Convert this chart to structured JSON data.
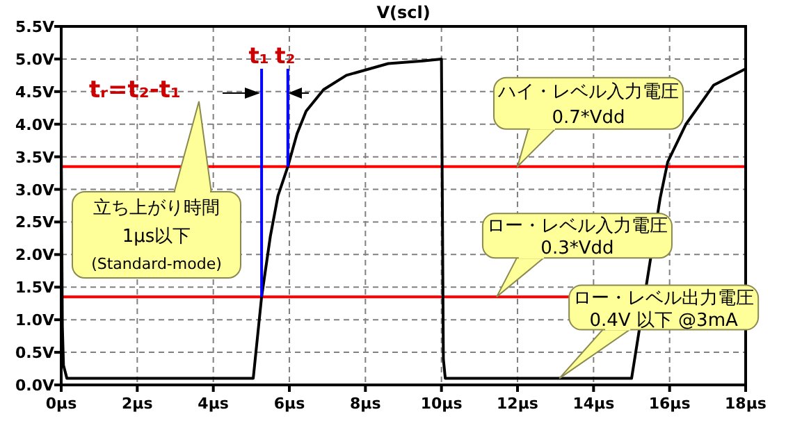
{
  "chart_data": {
    "type": "line",
    "title": "V(scl)",
    "xlim": [
      0,
      18
    ],
    "xticks": [
      {
        "value": 0,
        "label": "0μs"
      },
      {
        "value": 2,
        "label": "2μs"
      },
      {
        "value": 4,
        "label": "4μs"
      },
      {
        "value": 6,
        "label": "6μs"
      },
      {
        "value": 8,
        "label": "8μs"
      },
      {
        "value": 10,
        "label": "10μs"
      },
      {
        "value": 12,
        "label": "12μs"
      },
      {
        "value": 14,
        "label": "14μs"
      },
      {
        "value": 16,
        "label": "16μs"
      },
      {
        "value": 18,
        "label": "18μs"
      }
    ],
    "ylim": [
      0,
      5.5
    ],
    "yticks": [
      {
        "value": 0,
        "label": "0.0V"
      },
      {
        "value": 0.5,
        "label": "0.5V"
      },
      {
        "value": 1,
        "label": "1.0V"
      },
      {
        "value": 1.5,
        "label": "1.5V"
      },
      {
        "value": 2,
        "label": "2.0V"
      },
      {
        "value": 2.5,
        "label": "2.5V"
      },
      {
        "value": 3,
        "label": "3.0V"
      },
      {
        "value": 3.5,
        "label": "3.5V"
      },
      {
        "value": 4,
        "label": "4.0V"
      },
      {
        "value": 4.5,
        "label": "4.5V"
      },
      {
        "value": 5,
        "label": "5.0V"
      },
      {
        "value": 5.5,
        "label": "5.5V"
      }
    ],
    "grid": true,
    "series": [
      {
        "color": "#000000",
        "x": [
          0,
          0.03,
          0.06,
          0.15,
          5.05,
          5.27,
          5.5,
          5.7,
          5.96,
          6.2,
          6.44,
          6.9,
          7.5,
          8.6,
          9.5,
          10.0,
          10.05,
          10.1,
          15.0,
          15.75,
          15.95,
          16.43,
          17.16,
          18
        ],
        "values": [
          3.75,
          0.9,
          0.3,
          0.1,
          0.1,
          1.35,
          2.28,
          2.9,
          3.35,
          3.85,
          4.2,
          4.53,
          4.75,
          4.93,
          4.97,
          5.0,
          0.4,
          0.1,
          0.1,
          2.86,
          3.42,
          4.0,
          4.6,
          4.85
        ]
      },
      {
        "name": "t₁",
        "color": "#0000ff",
        "x": [
          5.27,
          5.27
        ],
        "values": [
          1.35,
          4.85
        ]
      },
      {
        "name": "t₂",
        "color": "#0000ff",
        "x": [
          5.96,
          5.96
        ],
        "values": [
          3.35,
          4.85
        ]
      }
    ],
    "ref_lines": [
      {
        "axis": "y",
        "value": 3.35,
        "color": "#ff0000"
      },
      {
        "axis": "y",
        "value": 1.35,
        "color": "#ff0000"
      }
    ],
    "annotations": [
      "tᵣ=t₂-t₁",
      "立ち上がり時間\n1μs以下\n(Standard-mode)",
      {
        "text": "ハイ・レベル入力電圧\n0.7*Vdd",
        "x": 12.0,
        "y": 3.35
      },
      {
        "text": "ロー・レベル入力電圧\n0.3*Vdd",
        "x": 11.45,
        "y": 1.35
      },
      {
        "text": "ロー・レベル出力電圧\n0.4V 以下 @3mA",
        "x": 13.1,
        "y": 0.1
      }
    ]
  }
}
